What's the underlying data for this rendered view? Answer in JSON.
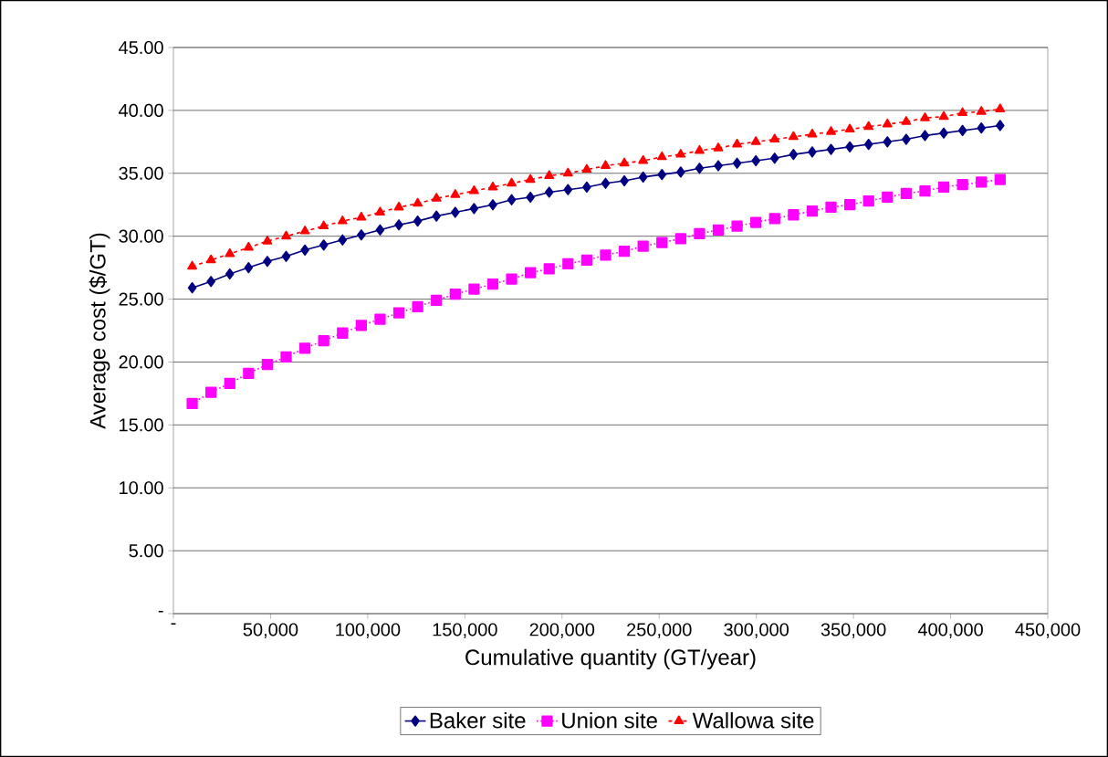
{
  "chart_data": {
    "type": "line",
    "xlabel": "Cumulative quantity (GT/year)",
    "ylabel": "Average cost ($/GT)",
    "x": [
      9670,
      19340,
      29010,
      38680,
      48350,
      58020,
      67690,
      77360,
      87030,
      96700,
      106370,
      116040,
      125710,
      135380,
      145050,
      154720,
      164390,
      174060,
      183730,
      193400,
      203070,
      212740,
      222410,
      232080,
      241750,
      251420,
      261090,
      270760,
      280430,
      290100,
      299770,
      309440,
      319110,
      328780,
      338450,
      348120,
      357790,
      367460,
      377130,
      386800,
      396470,
      406140,
      415810,
      425480
    ],
    "series": [
      {
        "name": "Baker site",
        "color": "#000080",
        "marker": "diamond",
        "line_style": "solid",
        "values": [
          25.9,
          26.4,
          27.0,
          27.5,
          28.0,
          28.4,
          28.9,
          29.3,
          29.7,
          30.1,
          30.5,
          30.9,
          31.2,
          31.6,
          31.9,
          32.2,
          32.5,
          32.9,
          33.1,
          33.5,
          33.7,
          33.9,
          34.2,
          34.4,
          34.7,
          34.9,
          35.1,
          35.4,
          35.6,
          35.8,
          36.0,
          36.2,
          36.5,
          36.7,
          36.9,
          37.1,
          37.3,
          37.5,
          37.7,
          38.0,
          38.2,
          38.4,
          38.6,
          38.8
        ]
      },
      {
        "name": "Union site",
        "color": "#ff00ff",
        "marker": "square",
        "line_style": "dotted",
        "values": [
          16.7,
          17.6,
          18.3,
          19.1,
          19.8,
          20.4,
          21.1,
          21.7,
          22.3,
          22.9,
          23.4,
          23.9,
          24.4,
          24.9,
          25.4,
          25.8,
          26.2,
          26.6,
          27.1,
          27.4,
          27.8,
          28.1,
          28.5,
          28.8,
          29.2,
          29.5,
          29.8,
          30.2,
          30.5,
          30.8,
          31.1,
          31.4,
          31.7,
          32.0,
          32.3,
          32.5,
          32.8,
          33.1,
          33.4,
          33.6,
          33.9,
          34.1,
          34.3,
          34.5
        ]
      },
      {
        "name": "Wallowa site",
        "color": "#ff0000",
        "marker": "triangle",
        "line_style": "dashed",
        "values": [
          27.6,
          28.1,
          28.6,
          29.1,
          29.6,
          30.0,
          30.4,
          30.8,
          31.2,
          31.5,
          31.9,
          32.3,
          32.6,
          33.0,
          33.3,
          33.6,
          33.9,
          34.2,
          34.5,
          34.8,
          35.0,
          35.3,
          35.6,
          35.8,
          36.0,
          36.3,
          36.5,
          36.8,
          37.0,
          37.3,
          37.5,
          37.7,
          37.9,
          38.1,
          38.3,
          38.5,
          38.7,
          38.9,
          39.1,
          39.4,
          39.5,
          39.8,
          39.9,
          40.1
        ]
      }
    ],
    "xlim": [
      0,
      450000
    ],
    "ylim": [
      0,
      45
    ],
    "xticks": [
      {
        "value": 0,
        "label": "-"
      },
      {
        "value": 50000,
        "label": "50,000"
      },
      {
        "value": 100000,
        "label": "100,000"
      },
      {
        "value": 150000,
        "label": "150,000"
      },
      {
        "value": 200000,
        "label": "200,000"
      },
      {
        "value": 250000,
        "label": "250,000"
      },
      {
        "value": 300000,
        "label": "300,000"
      },
      {
        "value": 350000,
        "label": "350,000"
      },
      {
        "value": 400000,
        "label": "400,000"
      },
      {
        "value": 450000,
        "label": "450,000"
      }
    ],
    "yticks": [
      {
        "value": 0,
        "label": "-"
      },
      {
        "value": 5,
        "label": "5.00"
      },
      {
        "value": 10,
        "label": "10.00"
      },
      {
        "value": 15,
        "label": "15.00"
      },
      {
        "value": 20,
        "label": "20.00"
      },
      {
        "value": 25,
        "label": "25.00"
      },
      {
        "value": 30,
        "label": "30.00"
      },
      {
        "value": 35,
        "label": "35.00"
      },
      {
        "value": 40,
        "label": "40.00"
      },
      {
        "value": 45,
        "label": "45.00"
      }
    ],
    "grid": "y",
    "legend": "bottom"
  }
}
